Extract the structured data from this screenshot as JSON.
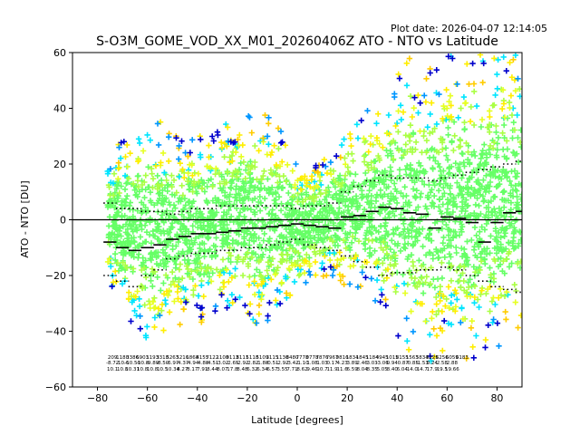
{
  "header": {
    "plot_date": "Plot date: 2026-04-07 12:14:05",
    "title": "S-O3M_GOME_VOD_XX_M01_20260406Z ATO - NTO vs Latitude"
  },
  "chart_data": {
    "type": "scatter",
    "xlabel": "Latitude [degrees]",
    "ylabel": "ATO - NTO [DU]",
    "xlim": [
      -90,
      90
    ],
    "ylim": [
      -60,
      60
    ],
    "x_ticks": [
      -80,
      -60,
      -40,
      -20,
      0,
      20,
      40,
      60,
      80
    ],
    "y_ticks": [
      -60,
      -40,
      -20,
      0,
      20,
      40,
      60
    ],
    "zero_line": 0,
    "marker": "plus",
    "colormap": [
      "#0000cc",
      "#0096ff",
      "#00e5ff",
      "#66ff66",
      "#aaff44",
      "#e6ff22",
      "#ffee00",
      "#ffcc00"
    ],
    "scatter_envelope": {
      "latitudes": [
        -75,
        -70,
        -65,
        -60,
        -55,
        -50,
        -45,
        -40,
        -35,
        -30,
        -25,
        -20,
        -15,
        -10,
        -5,
        0,
        5,
        10,
        15,
        20,
        25,
        30,
        35,
        40,
        45,
        50,
        55,
        60,
        65,
        70,
        75,
        80,
        85,
        90
      ],
      "upper": [
        22,
        30,
        34,
        40,
        36,
        30,
        30,
        30,
        32,
        34,
        36,
        38,
        40,
        36,
        32,
        20,
        20,
        22,
        26,
        30,
        38,
        40,
        42,
        52,
        58,
        54,
        56,
        60,
        60,
        60,
        60,
        60,
        60,
        60
      ],
      "lower": [
        -22,
        -36,
        -40,
        -45,
        -44,
        -38,
        -38,
        -38,
        -36,
        -34,
        -30,
        -34,
        -40,
        -36,
        -30,
        -26,
        -24,
        -22,
        -22,
        -24,
        -26,
        -30,
        -32,
        -42,
        -48,
        -50,
        -52,
        -48,
        -50,
        -52,
        -48,
        -46,
        -44,
        -44
      ]
    },
    "mean_series": {
      "name": "",
      "x": [
        -75,
        -70,
        -65,
        -60,
        -55,
        -50,
        -45,
        -40,
        -35,
        -30,
        -25,
        -20,
        -15,
        -10,
        -5,
        0,
        5,
        10,
        15,
        20,
        25,
        30,
        35,
        40,
        45,
        50,
        55,
        60,
        65,
        70,
        75,
        80,
        85,
        90
      ],
      "y": [
        -8,
        -10,
        -11,
        -10,
        -9,
        -7,
        -6,
        -5,
        -5,
        -4.5,
        -4,
        -3,
        -3,
        -2.5,
        -2,
        -1.5,
        -2,
        -2.5,
        -3,
        1,
        1.5,
        3,
        4.5,
        4,
        2.5,
        2,
        -3,
        1,
        0.5,
        -1,
        -8,
        -1,
        2.5,
        3
      ]
    },
    "upper_band": {
      "name": "",
      "x": [
        -75,
        -70,
        -65,
        -60,
        -55,
        -50,
        -45,
        -40,
        -35,
        -30,
        -25,
        -20,
        -15,
        -10,
        -5,
        0,
        5,
        10,
        15,
        20,
        25,
        30,
        35,
        40,
        45,
        50,
        55,
        60,
        65,
        70,
        75,
        80,
        85,
        90
      ],
      "y": [
        6,
        4,
        4,
        3,
        3,
        2,
        3,
        4,
        4,
        5,
        5,
        5,
        5,
        5,
        5,
        4,
        5,
        5,
        6,
        10,
        12,
        14,
        16,
        15,
        15,
        15,
        14,
        15,
        16,
        17,
        18,
        19,
        20,
        21
      ]
    },
    "lower_band": {
      "name": "",
      "x": [
        -75,
        -70,
        -65,
        -60,
        -55,
        -50,
        -45,
        -40,
        -35,
        -30,
        -25,
        -20,
        -15,
        -10,
        -5,
        0,
        5,
        10,
        15,
        20,
        25,
        30,
        35,
        40,
        45,
        50,
        55,
        60,
        65,
        70,
        75,
        80,
        85,
        90
      ],
      "y": [
        -20,
        -22,
        -24,
        -20,
        -18,
        -14,
        -13,
        -12,
        -12,
        -11,
        -11,
        -10,
        -10,
        -9,
        -8,
        -7,
        -9,
        -10,
        -11,
        -13,
        -15,
        -17,
        -20,
        -19,
        -19,
        -18,
        -18,
        -17,
        -18,
        -20,
        -22,
        -24,
        -25,
        -26
      ]
    },
    "annotations": {
      "x": [
        -74,
        -70,
        -66,
        -62,
        -58,
        -54,
        -50,
        -46,
        -42,
        -38,
        -34,
        -30,
        -26,
        -22,
        -18,
        -14,
        -10,
        -6,
        -2,
        2,
        6,
        10,
        14,
        18,
        22,
        26,
        30,
        34,
        38,
        42,
        46,
        50,
        54,
        58,
        62,
        66,
        70,
        74,
        78,
        82,
        86
      ],
      "row1": [
        "209",
        "1180",
        "3386",
        "6903",
        "1193",
        "3318",
        "5263",
        "5216",
        "1868",
        "4155",
        "7122",
        "1108",
        "9113",
        "8111",
        "5118",
        "5109",
        "3115",
        "1130",
        "8480",
        "7778",
        "0778",
        "7876",
        "7967",
        "9816",
        "1834",
        "1845",
        "1184",
        "4945",
        "1015",
        "8155",
        "1563",
        "5834",
        "3225",
        "6256",
        "6059",
        "6183",
        "",
        "",
        "",
        "",
        ""
      ],
      "row2": [
        "-8.72",
        "-10.6",
        "-10.50",
        "-10.8",
        "-9.89",
        "-8.50",
        "-6.97",
        "-4.37",
        "-4.94",
        "-4.88",
        "-4.51",
        "-3.02",
        "-2.65",
        "-2.92",
        "-2.82",
        "-1.88",
        "-0.51",
        "-2.92",
        "-3.42",
        "-1.10",
        "1.08",
        "1.03",
        "0.17",
        "4.23",
        "3.89",
        "2.46",
        "3.03",
        "-3.06",
        "0.94",
        "-0.87",
        "-0.85",
        "-1.53",
        "0.24",
        "2.58",
        "2.88",
        "",
        "",
        "",
        "",
        "",
        ""
      ],
      "row3": [
        "10.1",
        "10.8",
        "10.31",
        "10.8",
        "10.8",
        "10.5",
        "10.34",
        "8.27",
        "8.17",
        "7.91",
        "8.44",
        "8.07",
        "17.8",
        "8.48",
        "6.32",
        "6.34",
        "6.57",
        "3.55",
        "7.71",
        "8.62",
        "9.46",
        "10.7",
        "11.9",
        "11.6",
        "6.59",
        "8.04",
        "8.35",
        "5.05",
        "8.40",
        "6.04",
        "14.0",
        "14.7",
        "17.9",
        "19.5",
        "19.66",
        "",
        "",
        "",
        "",
        "",
        ""
      ]
    }
  }
}
